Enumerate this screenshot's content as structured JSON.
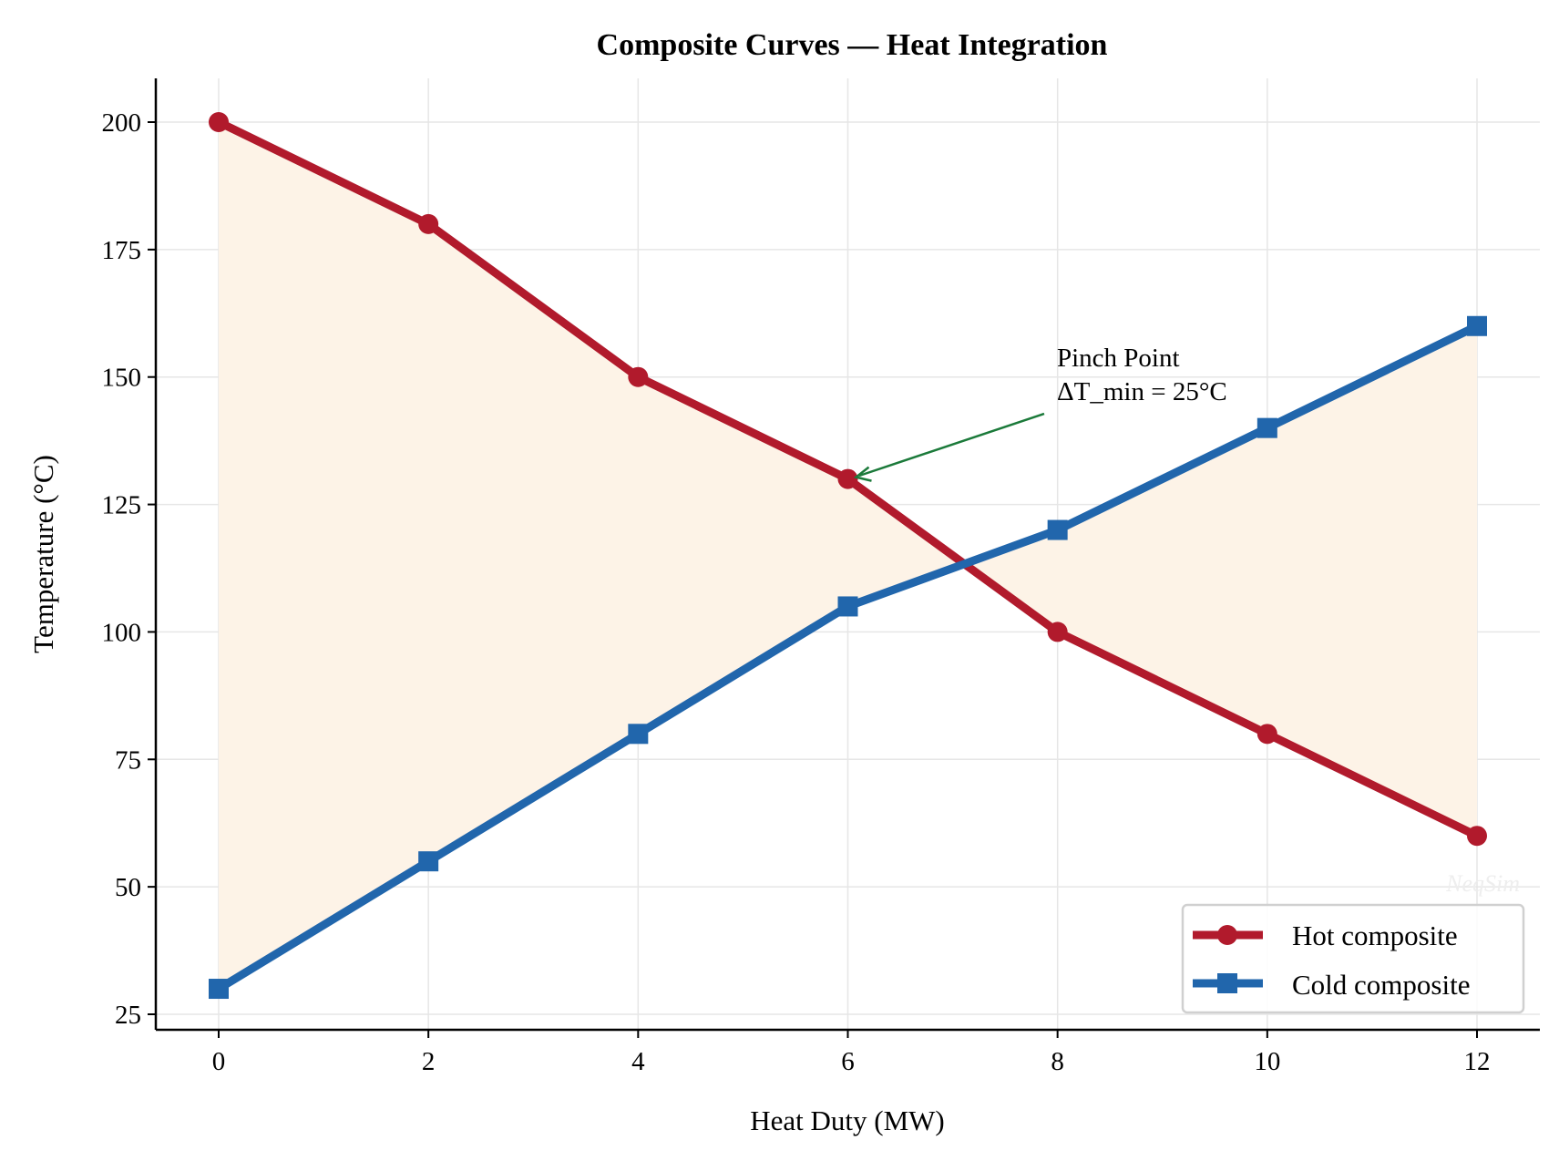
{
  "chart_data": {
    "type": "line",
    "title": "Composite Curves — Heat Integration",
    "xlabel": "Heat Duty (MW)",
    "ylabel": "Temperature (°C)",
    "x": [
      0,
      2,
      4,
      6,
      8,
      10,
      12
    ],
    "series": [
      {
        "name": "Hot composite",
        "values": [
          200,
          180,
          150,
          130,
          100,
          80,
          60
        ],
        "color": "#b11a2c",
        "marker": "circle"
      },
      {
        "name": "Cold composite",
        "values": [
          30,
          55,
          80,
          105,
          120,
          140,
          160
        ],
        "color": "#2166ac",
        "marker": "square"
      }
    ],
    "fill_between": {
      "color": "#fdf3e7"
    },
    "xlim": [
      -0.6,
      12.6
    ],
    "ylim": [
      21.5,
      208.5
    ],
    "xticks": [
      "0",
      "2",
      "4",
      "6",
      "8",
      "10",
      "12"
    ],
    "yticks": [
      "25",
      "50",
      "75",
      "100",
      "125",
      "150",
      "175",
      "200"
    ],
    "grid": true,
    "legend_placement": "bottom-right",
    "annotation": {
      "line1": "Pinch Point",
      "line2": "ΔT_min = 25°C",
      "x": 6,
      "y": 130,
      "color": "#1b7a3a"
    },
    "watermark": "NeqSim"
  }
}
